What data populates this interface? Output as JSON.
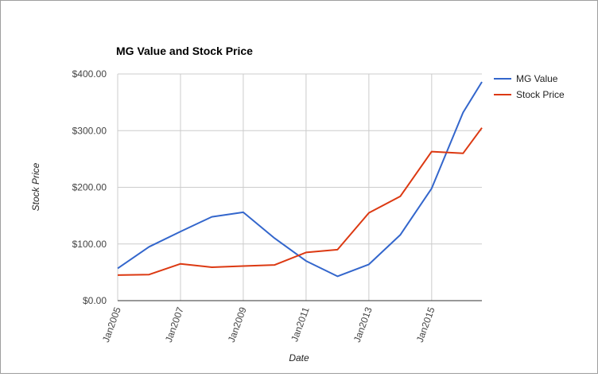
{
  "chart_data": {
    "type": "line",
    "title": "MG Value and Stock Price",
    "xlabel": "Date",
    "ylabel": "Stock Price",
    "x": [
      2005,
      2006,
      2007,
      2008,
      2009,
      2010,
      2011,
      2012,
      2013,
      2014,
      2015,
      2016,
      2016.6
    ],
    "xlim": [
      2005,
      2016.6
    ],
    "ylim": [
      0,
      400
    ],
    "x_ticks": [
      {
        "value": 2005,
        "label": "Jan2005"
      },
      {
        "value": 2007,
        "label": "Jan2007"
      },
      {
        "value": 2009,
        "label": "Jan2009"
      },
      {
        "value": 2011,
        "label": "Jan2011"
      },
      {
        "value": 2013,
        "label": "Jan2013"
      },
      {
        "value": 2015,
        "label": "Jan2015"
      }
    ],
    "y_ticks": [
      {
        "value": 0,
        "label": "$0.00"
      },
      {
        "value": 100,
        "label": "$100.00"
      },
      {
        "value": 200,
        "label": "$200.00"
      },
      {
        "value": 300,
        "label": "$300.00"
      },
      {
        "value": 400,
        "label": "$400.00"
      }
    ],
    "grid": true,
    "legend_position": "right",
    "series": [
      {
        "name": "MG Value",
        "color": "#3366cc",
        "values": [
          57,
          95,
          122,
          148,
          156,
          110,
          70,
          43,
          64,
          116,
          198,
          332,
          386
        ]
      },
      {
        "name": "Stock Price",
        "color": "#dc3912",
        "values": [
          45,
          46,
          65,
          59,
          61,
          63,
          85,
          90,
          155,
          184,
          263,
          260,
          305
        ]
      }
    ]
  }
}
